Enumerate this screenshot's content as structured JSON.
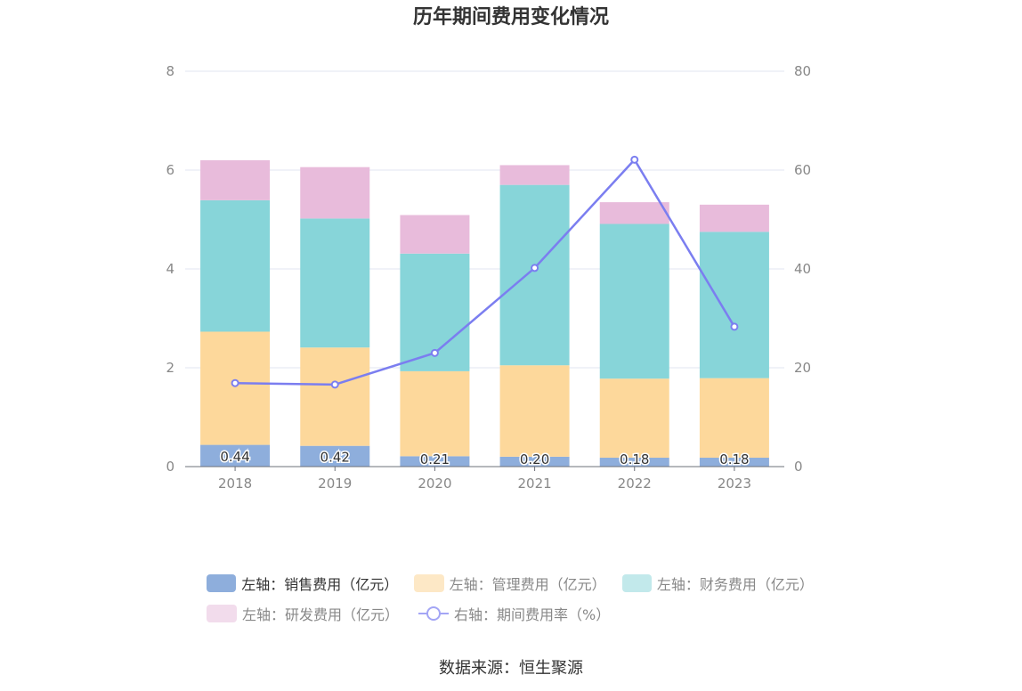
{
  "chart_data": {
    "type": "bar",
    "stacked": true,
    "title": "历年期间费用变化情况",
    "categories": [
      "2018",
      "2019",
      "2020",
      "2021",
      "2022",
      "2023"
    ],
    "left_axis": {
      "ylim": [
        0,
        8
      ],
      "ticks": [
        "0",
        "2",
        "4",
        "6",
        "8"
      ]
    },
    "right_axis": {
      "ylim": [
        0,
        80
      ],
      "ticks": [
        "0",
        "20",
        "40",
        "60",
        "80"
      ]
    },
    "series": [
      {
        "name": "左轴：销售费用（亿元）",
        "axis": "left",
        "type": "bar",
        "color": "#8eaedc",
        "values": [
          0.44,
          0.42,
          0.21,
          0.2,
          0.18,
          0.18
        ],
        "labels": [
          "0.44",
          "0.42",
          "0.21",
          "0.20",
          "0.18",
          "0.18"
        ]
      },
      {
        "name": "左轴：管理费用（亿元）",
        "axis": "left",
        "type": "bar",
        "color": "#fdd89b",
        "values": [
          2.29,
          1.99,
          1.72,
          1.85,
          1.6,
          1.61
        ]
      },
      {
        "name": "左轴：财务费用（亿元）",
        "axis": "left",
        "type": "bar",
        "color": "#87d5d9",
        "values": [
          2.66,
          2.61,
          2.38,
          3.65,
          3.13,
          2.96
        ]
      },
      {
        "name": "左轴：研发费用（亿元）",
        "axis": "left",
        "type": "bar",
        "color": "#e8bbdb",
        "values": [
          0.81,
          1.04,
          0.78,
          0.4,
          0.44,
          0.55
        ]
      },
      {
        "name": "右轴：期间费用率（%）",
        "axis": "right",
        "type": "line",
        "color": "#7b7ef0",
        "values": [
          16.9,
          16.6,
          23.0,
          40.2,
          62.1,
          28.3
        ]
      }
    ]
  },
  "legend": {
    "sales": "左轴：销售费用（亿元）",
    "admin": "左轴：管理费用（亿元）",
    "finance": "左轴：财务费用（亿元）",
    "rnd": "左轴：研发费用（亿元）",
    "rate": "右轴：期间费用率（%）"
  },
  "colors": {
    "sales": "#8eaedc",
    "admin_legend": "#fde8c6",
    "finance_legend": "#c2e9eb",
    "rnd_legend": "#f2dcec"
  },
  "source": "数据来源：恒生聚源"
}
